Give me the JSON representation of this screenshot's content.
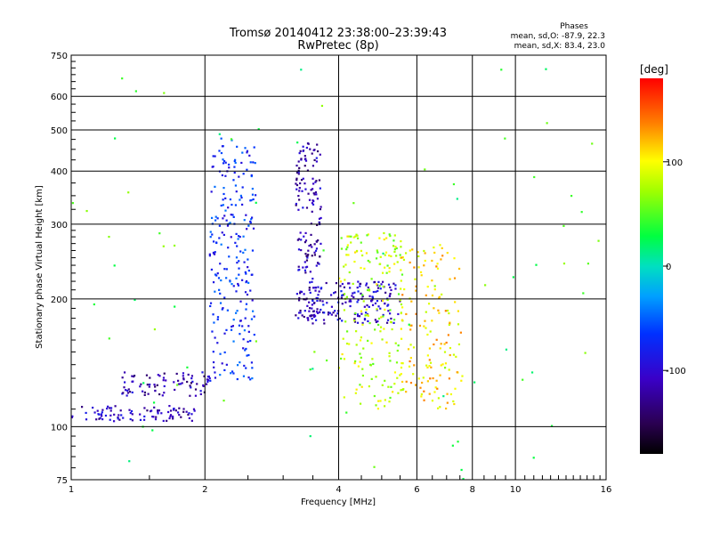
{
  "chart_data": {
    "type": "scatter",
    "title": "Tromsø 20140412 23:38:00–23:39:43",
    "subtitle": "RwPretec (8p)",
    "xlabel": "Frequency [MHz]",
    "ylabel": "Stationary phase Virtual Height [km]",
    "x_scale": "log",
    "y_scale": "log",
    "xlim": [
      1,
      16
    ],
    "ylim": [
      75,
      750
    ],
    "x_ticks": [
      1,
      2,
      4,
      6,
      8,
      10,
      16
    ],
    "y_ticks": [
      75,
      100,
      200,
      300,
      400,
      500,
      600,
      750
    ],
    "grid": true,
    "phases_box": {
      "title": "Phases",
      "line1": "mean, sd,O: -87.9, 22.3",
      "line2": "mean, sd,X: 83.4, 23.0"
    },
    "colorbar": {
      "label": "[deg]",
      "range": [
        -180,
        180
      ],
      "ticks": [
        100,
        0,
        -100
      ],
      "tick_labels": [
        "100",
        "0",
        "-100"
      ]
    },
    "clusters": [
      {
        "trace": "low E-layer trace",
        "x_range": [
          1.0,
          1.9
        ],
        "height_range": [
          103,
          112
        ],
        "phase": -110,
        "points": 90
      },
      {
        "trace": "sporadic trace 1.3-2.0 MHz",
        "x_range": [
          1.3,
          2.05
        ],
        "height_range": [
          118,
          135
        ],
        "phase": -115,
        "points": 80
      },
      {
        "trace": "trace near 2.4 MHz",
        "x_range": [
          2.05,
          2.6
        ],
        "height_range": [
          128,
          480
        ],
        "phase": -70,
        "points": 240
      },
      {
        "trace": "F-layer steep rise 3.3-3.6 MHz",
        "x_range": [
          3.2,
          3.65
        ],
        "height_range": [
          180,
          470
        ],
        "phase": -115,
        "points": 170
      },
      {
        "trace": "O-mode F trace 3.4-5.5 MHz",
        "x_range": [
          3.4,
          5.5
        ],
        "height_range": [
          175,
          220
        ],
        "phase": -105,
        "points": 160
      },
      {
        "trace": "X-mode trace 4-5.5 MHz",
        "x_range": [
          4.0,
          5.6
        ],
        "height_range": [
          110,
          290
        ],
        "phase": 80,
        "points": 190
      },
      {
        "trace": "mixed trace 5.5-7.6 MHz",
        "x_range": [
          5.5,
          7.6
        ],
        "height_range": [
          110,
          270
        ],
        "phase": 110,
        "points": 150
      },
      {
        "trace": "scattered points",
        "x_range": [
          1.0,
          16.0
        ],
        "height_range": [
          75,
          700
        ],
        "phase": 40,
        "points": 80
      }
    ]
  }
}
